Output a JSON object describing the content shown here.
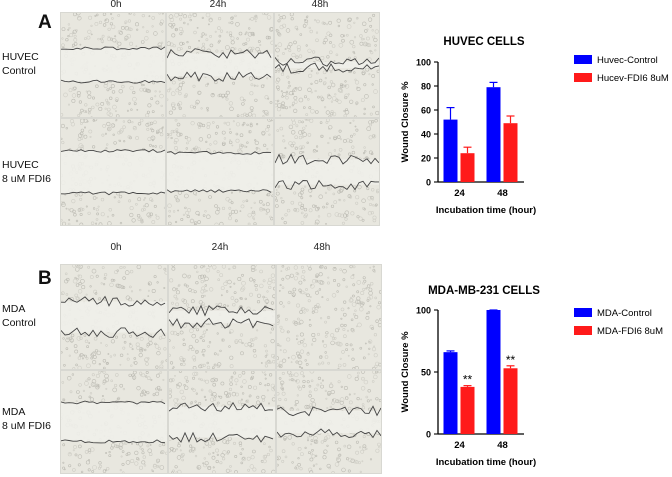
{
  "panelA": {
    "letter": "A",
    "col_labels": [
      "0h",
      "24h",
      "48h"
    ],
    "rows": [
      {
        "line1": "HUVEC",
        "line2": "Control"
      },
      {
        "line1": "HUVEC",
        "line2": "8 uM FDI6"
      }
    ]
  },
  "panelB": {
    "letter": "B",
    "col_labels": [
      "0h",
      "24h",
      "48h"
    ],
    "rows": [
      {
        "line1": "MDA",
        "line2": "Control"
      },
      {
        "line1": "MDA",
        "line2": "8 uM FDI6"
      }
    ]
  },
  "chart_data": [
    {
      "type": "bar",
      "title": "HUVEC CELLS",
      "xlabel": "Incubation time (hour)",
      "ylabel": "Wound Closure %",
      "ylim": [
        0,
        100
      ],
      "yticks": [
        "0",
        "20",
        "40",
        "60",
        "80",
        "100"
      ],
      "categories": [
        "24",
        "48"
      ],
      "series": [
        {
          "name": "Huvec-Control",
          "color": "#0000ff",
          "values": [
            52,
            79
          ],
          "errors": [
            10,
            4
          ]
        },
        {
          "name": "Hucev-FDI6 8uM",
          "color": "#ff1a1a",
          "values": [
            24,
            49
          ],
          "errors": [
            5,
            6
          ]
        }
      ],
      "significance": [
        [
          "",
          ""
        ],
        [
          "",
          ""
        ]
      ],
      "grid": false,
      "legend_position": "right"
    },
    {
      "type": "bar",
      "title": "MDA-MB-231 CELLS",
      "xlabel": "Incubation time (hour)",
      "ylabel": "Wound Closure %",
      "ylim": [
        0,
        100
      ],
      "yticks": [
        "0",
        "50",
        "100"
      ],
      "categories": [
        "24",
        "48"
      ],
      "series": [
        {
          "name": "MDA-Control",
          "color": "#0000ff",
          "values": [
            66,
            100
          ],
          "errors": [
            1,
            0.5
          ]
        },
        {
          "name": "MDA-FDI6 8uM",
          "color": "#ff1a1a",
          "values": [
            38,
            53
          ],
          "errors": [
            1,
            2
          ]
        }
      ],
      "significance": [
        [
          "",
          "**"
        ],
        [
          "",
          "**"
        ]
      ],
      "grid": false,
      "legend_position": "right"
    }
  ],
  "colors": {
    "micrograph_bg": "#e8e7df",
    "cell_line": "#444444"
  }
}
